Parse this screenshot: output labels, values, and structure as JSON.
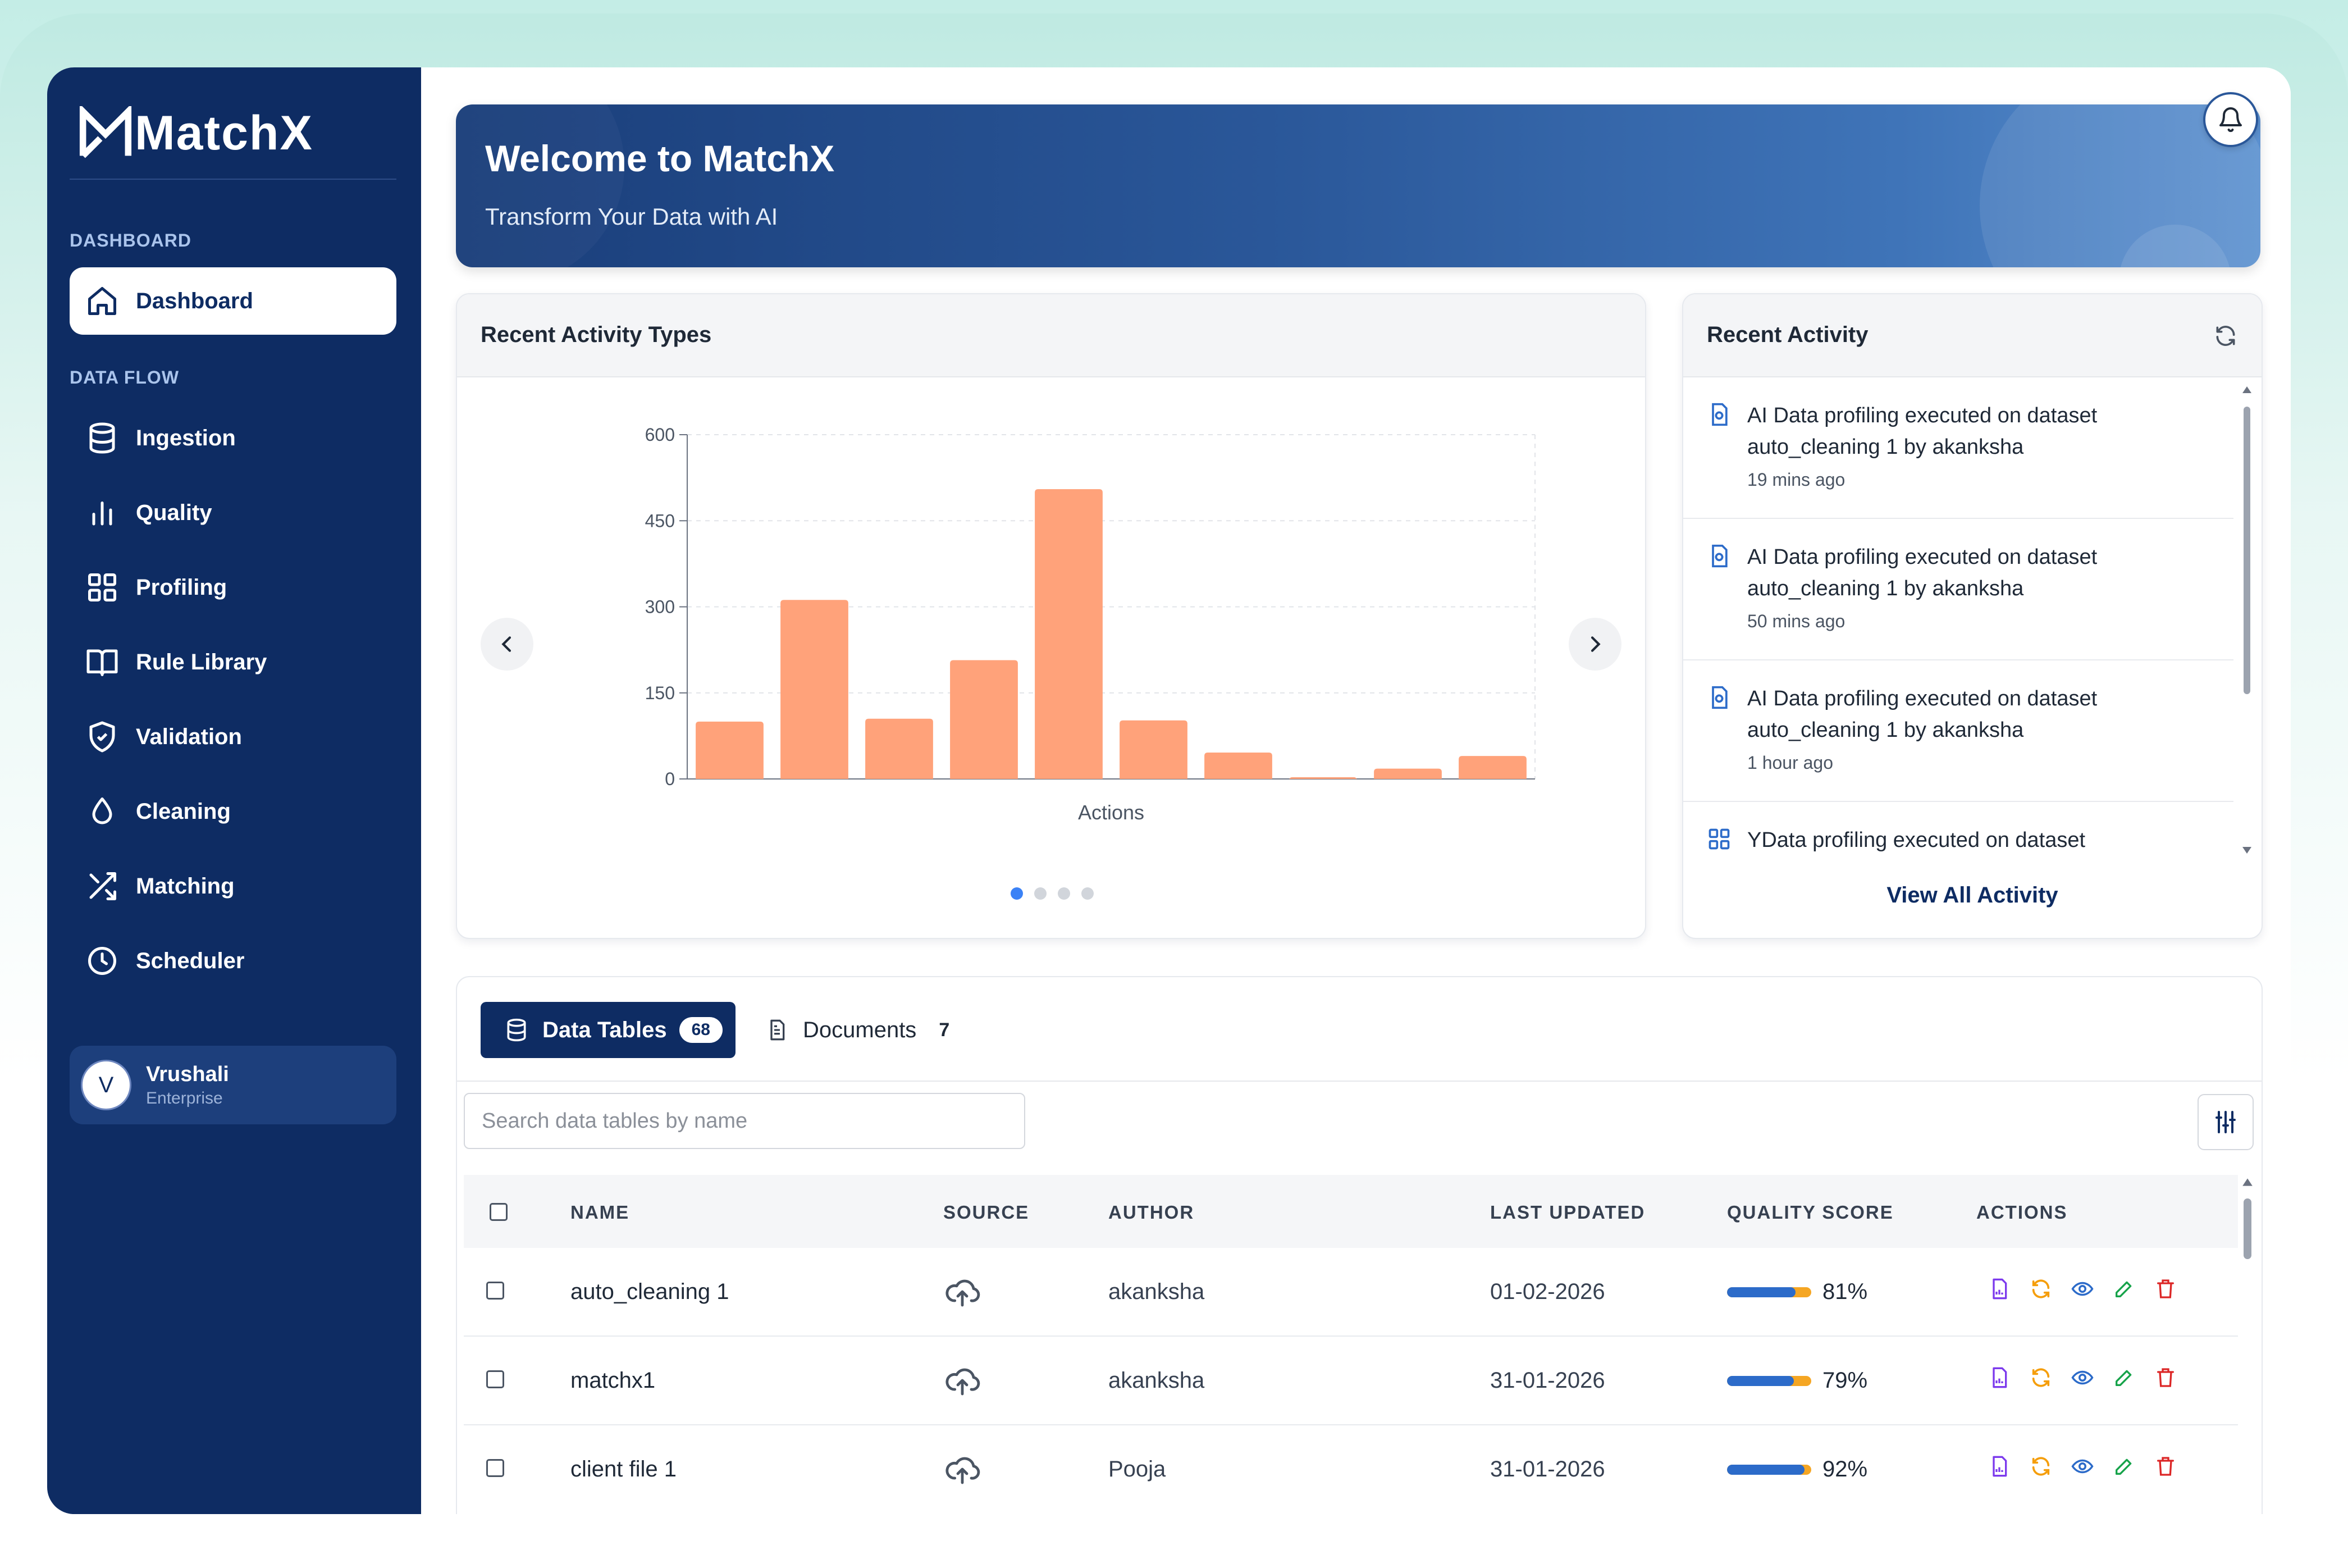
{
  "app": {
    "name": "MatchX"
  },
  "sidebar": {
    "section_dashboard": "DASHBOARD",
    "section_dataflow": "DATA FLOW",
    "items": [
      {
        "label": "Dashboard",
        "icon": "home-icon",
        "active": true
      },
      {
        "label": "Ingestion",
        "icon": "database-icon"
      },
      {
        "label": "Quality",
        "icon": "bar-chart-icon"
      },
      {
        "label": "Profiling",
        "icon": "grid-icon"
      },
      {
        "label": "Rule Library",
        "icon": "book-icon"
      },
      {
        "label": "Validation",
        "icon": "shield-check-icon"
      },
      {
        "label": "Cleaning",
        "icon": "droplet-icon"
      },
      {
        "label": "Matching",
        "icon": "shuffle-icon"
      },
      {
        "label": "Scheduler",
        "icon": "clock-icon"
      }
    ],
    "user": {
      "initial": "V",
      "name": "Vrushali",
      "role": "Enterprise"
    }
  },
  "hero": {
    "title": "Welcome to MatchX",
    "subtitle": "Transform Your Data with AI",
    "bell_icon": "bell-icon"
  },
  "chart_card": {
    "title": "Recent Activity Types",
    "page_count": 4,
    "active_page": 1
  },
  "chart_data": {
    "type": "bar",
    "title": "",
    "xlabel": "Actions",
    "ylabel": "",
    "ylim": [
      0,
      600
    ],
    "yticks": [
      "0",
      "150",
      "300",
      "450",
      "600"
    ],
    "categories": [
      "",
      "",
      "",
      "",
      "",
      "",
      "",
      "",
      "",
      ""
    ],
    "values": [
      100,
      312,
      105,
      207,
      505,
      102,
      46,
      3,
      18,
      40
    ],
    "bar_color": "#ffa27a",
    "grid": true
  },
  "activity": {
    "title": "Recent Activity",
    "refresh_icon": "refresh-icon",
    "items": [
      {
        "text": "AI Data profiling executed on dataset auto_cleaning 1 by akanksha",
        "time": "19 mins ago",
        "icon": "ai-file-icon"
      },
      {
        "text": "AI Data profiling executed on dataset auto_cleaning 1 by akanksha",
        "time": "50 mins ago",
        "icon": "ai-file-icon"
      },
      {
        "text": "AI Data profiling executed on dataset auto_cleaning 1 by akanksha",
        "time": "1 hour ago",
        "icon": "ai-file-icon"
      },
      {
        "text": "YData profiling executed on dataset",
        "time": "",
        "icon": "grid-icon"
      }
    ],
    "view_all": "View All Activity"
  },
  "tables": {
    "tab_data": {
      "label": "Data Tables",
      "count": "68"
    },
    "tab_docs": {
      "label": "Documents",
      "count": "7"
    },
    "search_placeholder": "Search data tables by name",
    "columns": [
      "NAME",
      "SOURCE",
      "AUTHOR",
      "LAST UPDATED",
      "QUALITY SCORE",
      "ACTIONS"
    ],
    "rows": [
      {
        "name": "auto_cleaning 1",
        "source_icon": "cloud-upload-icon",
        "author": "akanksha",
        "updated": "01-02-2026",
        "score": "81%",
        "score_value": 0.81
      },
      {
        "name": "matchx1",
        "source_icon": "cloud-upload-icon",
        "author": "akanksha",
        "updated": "31-01-2026",
        "score": "79%",
        "score_value": 0.79
      },
      {
        "name": "client file 1",
        "source_icon": "cloud-upload-icon",
        "author": "Pooja",
        "updated": "31-01-2026",
        "score": "92%",
        "score_value": 0.92
      }
    ],
    "colors": {
      "primary": "#0e2c63",
      "score_fill": "#2c6bc9",
      "score_rest": "#f5a623"
    }
  }
}
